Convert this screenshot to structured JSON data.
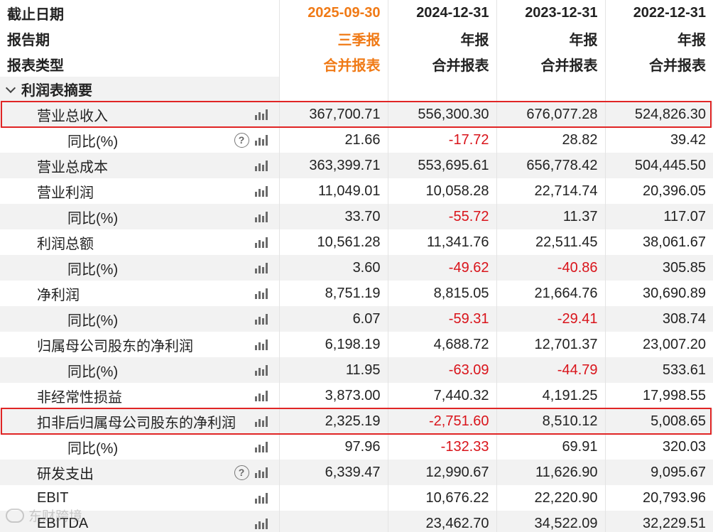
{
  "header": {
    "rows": [
      {
        "label": "截止日期",
        "values": [
          "2025-09-30",
          "2024-12-31",
          "2023-12-31",
          "2022-12-31"
        ]
      },
      {
        "label": "报告期",
        "values": [
          "三季报",
          "年报",
          "年报",
          "年报"
        ]
      },
      {
        "label": "报表类型",
        "values": [
          "合并报表",
          "合并报表",
          "合并报表",
          "合并报表"
        ]
      }
    ]
  },
  "section": {
    "title": "利润表摘要"
  },
  "rows": [
    {
      "label": "营业总收入",
      "level": 1,
      "help": false,
      "values": [
        "367,700.71",
        "556,300.30",
        "676,077.28",
        "524,826.30"
      ]
    },
    {
      "label": "同比(%)",
      "level": 2,
      "help": true,
      "values": [
        "21.66",
        "-17.72",
        "28.82",
        "39.42"
      ]
    },
    {
      "label": "营业总成本",
      "level": 1,
      "help": false,
      "values": [
        "363,399.71",
        "553,695.61",
        "656,778.42",
        "504,445.50"
      ]
    },
    {
      "label": "营业利润",
      "level": 1,
      "help": false,
      "values": [
        "11,049.01",
        "10,058.28",
        "22,714.74",
        "20,396.05"
      ]
    },
    {
      "label": "同比(%)",
      "level": 2,
      "help": false,
      "values": [
        "33.70",
        "-55.72",
        "11.37",
        "117.07"
      ]
    },
    {
      "label": "利润总额",
      "level": 1,
      "help": false,
      "values": [
        "10,561.28",
        "11,341.76",
        "22,511.45",
        "38,061.67"
      ]
    },
    {
      "label": "同比(%)",
      "level": 2,
      "help": false,
      "values": [
        "3.60",
        "-49.62",
        "-40.86",
        "305.85"
      ]
    },
    {
      "label": "净利润",
      "level": 1,
      "help": false,
      "values": [
        "8,751.19",
        "8,815.05",
        "21,664.76",
        "30,690.89"
      ]
    },
    {
      "label": "同比(%)",
      "level": 2,
      "help": false,
      "values": [
        "6.07",
        "-59.31",
        "-29.41",
        "308.74"
      ]
    },
    {
      "label": "归属母公司股东的净利润",
      "level": 1,
      "help": false,
      "values": [
        "6,198.19",
        "4,688.72",
        "12,701.37",
        "23,007.20"
      ]
    },
    {
      "label": "同比(%)",
      "level": 2,
      "help": false,
      "values": [
        "11.95",
        "-63.09",
        "-44.79",
        "533.61"
      ]
    },
    {
      "label": "非经常性损益",
      "level": 1,
      "help": false,
      "values": [
        "3,873.00",
        "7,440.32",
        "4,191.25",
        "17,998.55"
      ]
    },
    {
      "label": "扣非后归属母公司股东的净利润",
      "level": 1,
      "help": false,
      "values": [
        "2,325.19",
        "-2,751.60",
        "8,510.12",
        "5,008.65"
      ]
    },
    {
      "label": "同比(%)",
      "level": 2,
      "help": false,
      "values": [
        "97.96",
        "-132.33",
        "69.91",
        "320.03"
      ]
    },
    {
      "label": "研发支出",
      "level": 1,
      "help": true,
      "values": [
        "6,339.47",
        "12,990.67",
        "11,626.90",
        "9,095.67"
      ]
    },
    {
      "label": "EBIT",
      "level": 1,
      "help": false,
      "values": [
        "",
        "10,676.22",
        "22,220.90",
        "20,793.96"
      ]
    },
    {
      "label": "EBITDA",
      "level": 1,
      "help": false,
      "values": [
        "",
        "23,462.70",
        "34,522.09",
        "32,229.51"
      ]
    }
  ],
  "highlighted_rows": [
    "营业总收入",
    "扣非后归属母公司股东的净利润"
  ],
  "watermark": "东财跨境",
  "colors": {
    "current_period": "#f07a16",
    "negative": "#d9141b",
    "highlight": "#e02525",
    "alt_row": "#f2f2f2"
  },
  "icons": {
    "row_chart": "bar-chart-icon",
    "help": "help-circle-icon",
    "expand": "chevron-down-icon"
  }
}
